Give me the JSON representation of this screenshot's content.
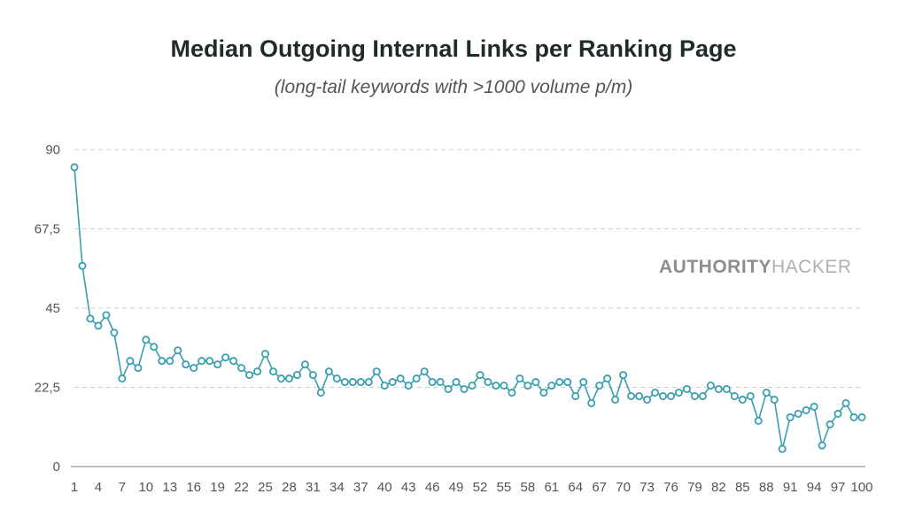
{
  "chart_data": {
    "type": "line",
    "title": "Median Outgoing Internal Links per Ranking Page",
    "subtitle": "(long-tail keywords with >1000 volume p/m)",
    "xlabel": "",
    "ylabel": "",
    "ylim": [
      0,
      90
    ],
    "y_ticks": [
      "0",
      "22,5",
      "45",
      "67,5",
      "90"
    ],
    "y_tick_values": [
      0,
      22.5,
      45,
      67.5,
      90
    ],
    "x_tick_labels": [
      "1",
      "4",
      "7",
      "10",
      "13",
      "16",
      "19",
      "22",
      "25",
      "28",
      "31",
      "34",
      "37",
      "40",
      "43",
      "46",
      "49",
      "52",
      "55",
      "58",
      "61",
      "64",
      "67",
      "70",
      "73",
      "76",
      "79",
      "82",
      "85",
      "88",
      "91",
      "94",
      "97",
      "100"
    ],
    "grid": true,
    "color": "#3a9fb0",
    "x": [
      1,
      2,
      3,
      4,
      5,
      6,
      7,
      8,
      9,
      10,
      11,
      12,
      13,
      14,
      15,
      16,
      17,
      18,
      19,
      20,
      21,
      22,
      23,
      24,
      25,
      26,
      27,
      28,
      29,
      30,
      31,
      32,
      33,
      34,
      35,
      36,
      37,
      38,
      39,
      40,
      41,
      42,
      43,
      44,
      45,
      46,
      47,
      48,
      49,
      50,
      51,
      52,
      53,
      54,
      55,
      56,
      57,
      58,
      59,
      60,
      61,
      62,
      63,
      64,
      65,
      66,
      67,
      68,
      69,
      70,
      71,
      72,
      73,
      74,
      75,
      76,
      77,
      78,
      79,
      80,
      81,
      82,
      83,
      84,
      85,
      86,
      87,
      88,
      89,
      90,
      91,
      92,
      93,
      94,
      95,
      96,
      97,
      98,
      99,
      100
    ],
    "values": [
      85,
      57,
      42,
      40,
      43,
      38,
      25,
      30,
      28,
      36,
      34,
      30,
      30,
      33,
      29,
      28,
      30,
      30,
      29,
      31,
      30,
      28,
      26,
      27,
      32,
      27,
      25,
      25,
      26,
      29,
      26,
      21,
      27,
      25,
      24,
      24,
      24,
      24,
      27,
      23,
      24,
      25,
      23,
      25,
      27,
      24,
      24,
      22,
      24,
      22,
      23,
      26,
      24,
      23,
      23,
      21,
      25,
      23,
      24,
      21,
      23,
      24,
      24,
      20,
      24,
      18,
      23,
      25,
      19,
      26,
      20,
      20,
      19,
      21,
      20,
      20,
      21,
      22,
      20,
      20,
      23,
      22,
      22,
      20,
      19,
      20,
      13,
      21,
      19,
      5,
      14,
      15,
      16,
      17,
      6,
      12,
      15,
      18,
      14,
      14
    ]
  },
  "watermark": {
    "part1": "AUTHORITY",
    "part2": "HACKER"
  }
}
